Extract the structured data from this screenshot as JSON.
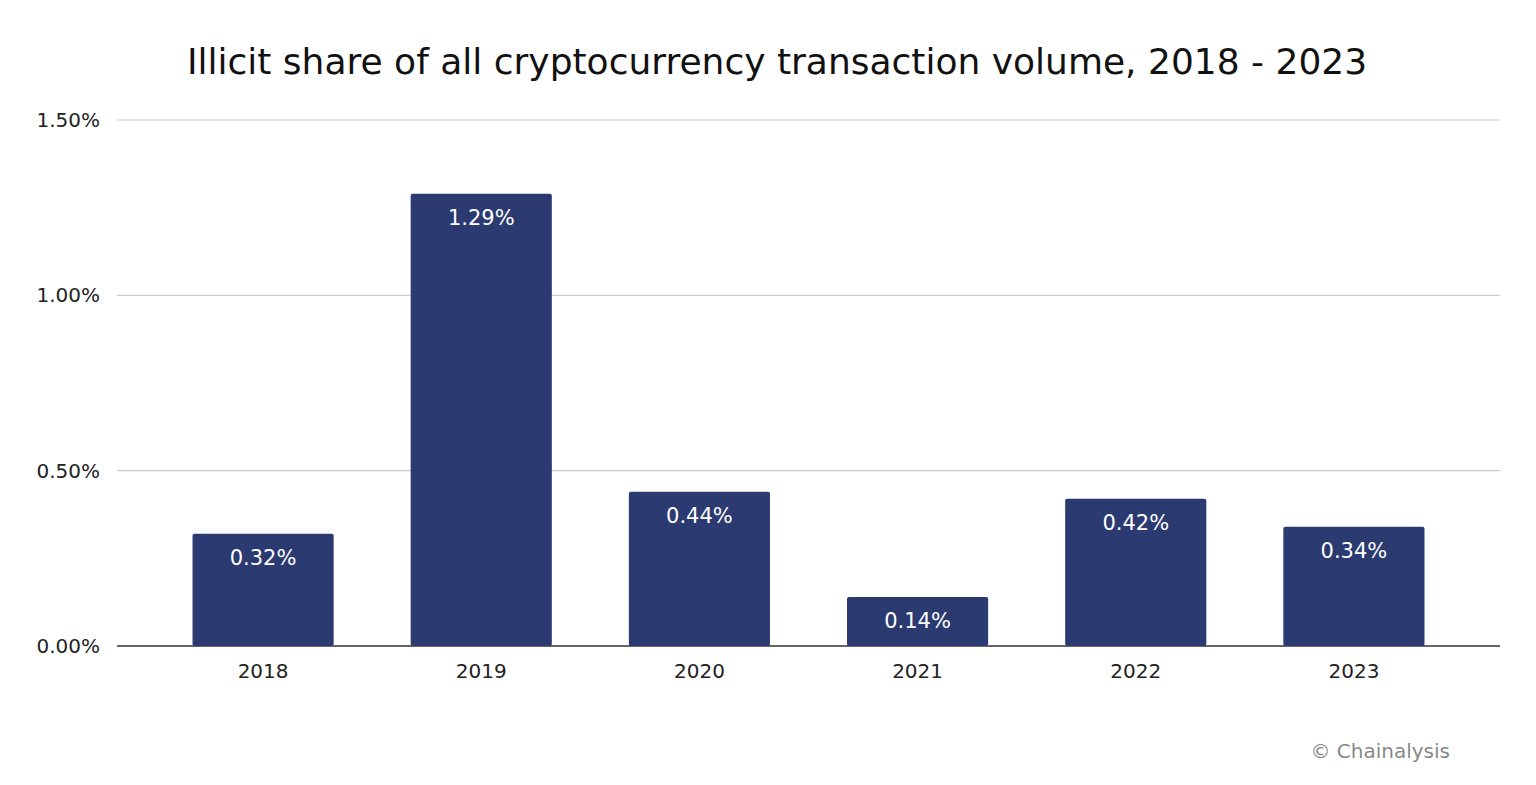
{
  "chart_data": {
    "type": "bar",
    "title": "Illicit share of all cryptocurrency transaction volume, 2018 - 2023",
    "categories": [
      "2018",
      "2019",
      "2020",
      "2021",
      "2022",
      "2023"
    ],
    "values": [
      0.32,
      1.29,
      0.44,
      0.14,
      0.42,
      0.34
    ],
    "value_labels": [
      "0.32%",
      "1.29%",
      "0.44%",
      "0.14%",
      "0.42%",
      "0.34%"
    ],
    "color": "#2b3a71",
    "ylim": [
      0,
      1.5
    ],
    "yticks": [
      {
        "value": 0,
        "label": "0.00%"
      },
      {
        "value": 0.5,
        "label": "0.50%"
      },
      {
        "value": 1,
        "label": "1.00%"
      },
      {
        "value": 1.5,
        "label": "1.50%"
      }
    ],
    "grid": true,
    "data_labels": true,
    "source": "© Chainalysis"
  }
}
